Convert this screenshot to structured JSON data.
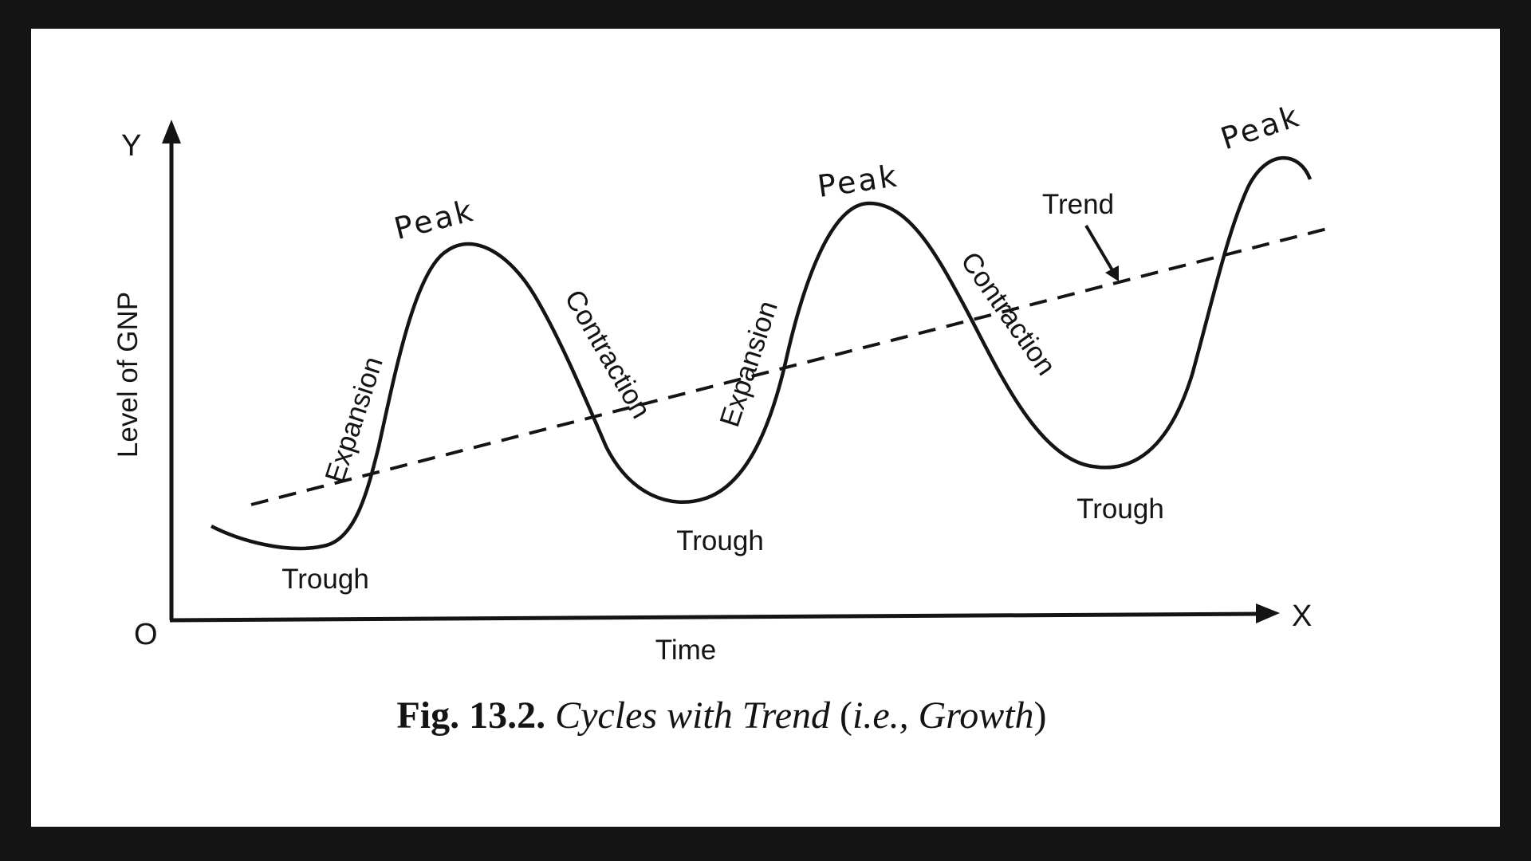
{
  "axes": {
    "y_letter": "Y",
    "x_letter": "X",
    "origin": "O",
    "y_label": "Level of GNP",
    "x_label": "Time"
  },
  "labels": {
    "peak": "Peak",
    "trough": "Trough",
    "expansion": "Expansion",
    "contraction": "Contraction",
    "trend": "Trend"
  },
  "caption": {
    "number": "Fig. 13.2.",
    "title": "Cycles with Trend",
    "open_paren": " (",
    "ie": "i.e.,",
    "growth": "Growth",
    "close_paren": ")"
  },
  "colors": {
    "ink": "#141414",
    "paper": "#ffffff",
    "border": "#141414"
  }
}
